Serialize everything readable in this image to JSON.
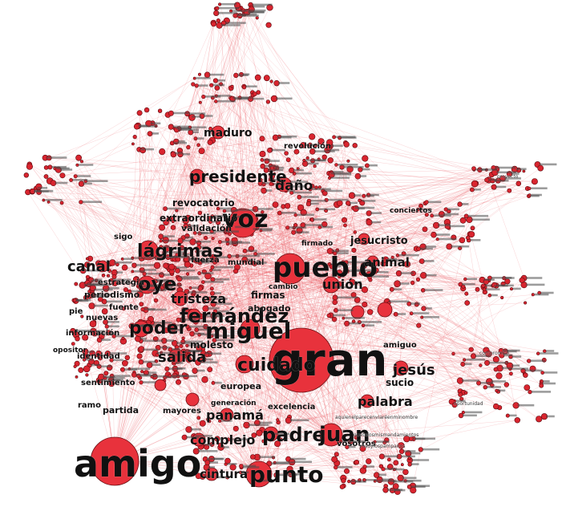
{
  "colors": {
    "node": "#e8323c",
    "node_stroke": "#6b0f14",
    "edge": "#e8464f",
    "label": "#111111"
  },
  "labels": {
    "gran": "gran",
    "amigo": "amigo",
    "pueblo": "pueblo",
    "voz": "voz",
    "miguel": "miguel",
    "fernandez": "fernández",
    "presidente": "presidente",
    "lagrimas": "lágrimas",
    "oye": "oye",
    "poder": "poder",
    "punto": "punto",
    "padre": "padre",
    "juan": "juan",
    "cuidado": "cuidado",
    "jesus": "jesús",
    "canal": "canal",
    "salida": "salida",
    "tristeza": "tristeza",
    "union": "unión",
    "palabra": "palabra",
    "complejo": "complejo",
    "cintura": "cintura",
    "panama": "panamá",
    "jesucristo": "jesucristo",
    "animal": "animal",
    "dano": "daño",
    "maduro": "maduro",
    "revocatorio": "revocatorio",
    "extraordinario": "extraordinario",
    "validacion": "validación",
    "revolucion": "revolución",
    "periodismo": "periodismo",
    "fuente": "fuente",
    "nuevas": "nuevas",
    "informacion": "información",
    "identidad": "identidad",
    "sentimiento": "sentimiento",
    "ramo": "ramo",
    "partida": "partida",
    "europea": "europea",
    "excelencia": "excelencia",
    "sucio": "sucio",
    "firmas": "firmas",
    "abogado": "abogado",
    "molesto": "molesto",
    "pie": "pie",
    "sigo": "sigo",
    "fuerza": "fuerza",
    "mundial": "mundial",
    "opositor": "opositor",
    "estrategia": "estrategia",
    "vosotros": "vosotros",
    "mayores": "mayores",
    "generacion": "generación",
    "paredes": "paredes",
    "nada": "nada",
    "mandamientos": "quetelosmismandamientos",
    "pampanos": "yosoylospámpanos",
    "nombre": "aquienelparecenviaréenminombre",
    "oportunidad": "oportunidad",
    "proyecto": "proyecto",
    "compromiso": "compromiso",
    "conciertos": "conciertos",
    "amigo2": "amiguo",
    "firmando": "firmado",
    "cambio": "cambio"
  }
}
